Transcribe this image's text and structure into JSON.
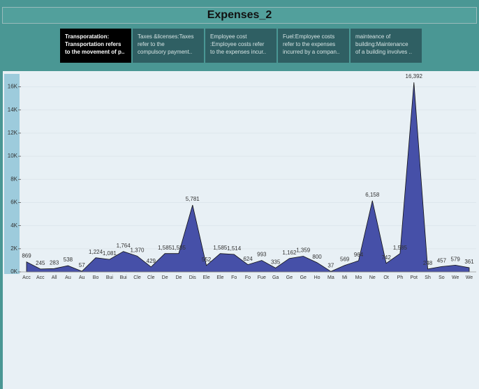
{
  "tabs": [
    {
      "lines": [
        "Transporatation:",
        "Transportation refers",
        "to the movement of p.."
      ]
    },
    {
      "lines": [
        "Taxes &licenses:Taxes",
        "refer to the",
        "compulsory payment.."
      ]
    },
    {
      "lines": [
        "Employee cost",
        ":Employee costs refer",
        "to the expenses incur.."
      ]
    },
    {
      "lines": [
        "Fuel:Employee costs",
        "refer to the expenses",
        "incurred by a compan.."
      ]
    },
    {
      "lines": [
        "mainteance of",
        "building:Maintenance",
        "of a building involves .."
      ]
    }
  ],
  "chart_data": {
    "type": "area",
    "title": "Expenses_2",
    "categories": [
      "Acc",
      "Acc",
      "All",
      "Au",
      "Au",
      "Bo",
      "Bui",
      "Bui",
      "Cle",
      "Cle",
      "De",
      "De",
      "Dis",
      "Ele",
      "Ele",
      "Fo",
      "Fo",
      "Fue",
      "Ga",
      "Ge",
      "Ge",
      "Ho",
      "Ma",
      "Mi",
      "Mo",
      "Ne",
      "Ot",
      "Ph",
      "Pot",
      "Sh",
      "So",
      "We",
      "We"
    ],
    "values": [
      869,
      245,
      283,
      538,
      57,
      1224,
      1081,
      1764,
      1370,
      429,
      1585,
      1585,
      5781,
      552,
      1585,
      1514,
      624,
      993,
      335,
      1162,
      1359,
      800,
      37,
      569,
      964,
      6158,
      742,
      1585,
      16392,
      248,
      457,
      579,
      361
    ],
    "value_labels": [
      "869",
      "245",
      "283",
      "538",
      "57",
      "1,224",
      "1,081",
      "1,764",
      "1,370",
      "429",
      "1,585",
      "1,585",
      "5,781",
      "552",
      "1,585",
      "1,514",
      "624",
      "993",
      "335",
      "1,162",
      "1,359",
      "800",
      "37",
      "569",
      "964",
      "6,158",
      "742",
      "1,585",
      "16,392",
      "248",
      "457",
      "579",
      "361"
    ],
    "color": "#4650a8",
    "ylim": [
      0,
      17000
    ],
    "yticks": [
      {
        "value": 0,
        "label": "0K"
      },
      {
        "value": 2000,
        "label": "2K"
      },
      {
        "value": 4000,
        "label": "4K"
      },
      {
        "value": 6000,
        "label": "6K"
      },
      {
        "value": 8000,
        "label": "8K"
      },
      {
        "value": 10000,
        "label": "10K"
      },
      {
        "value": 12000,
        "label": "12K"
      },
      {
        "value": 14000,
        "label": "14K"
      },
      {
        "value": 16000,
        "label": "16K"
      }
    ],
    "grid": true
  }
}
